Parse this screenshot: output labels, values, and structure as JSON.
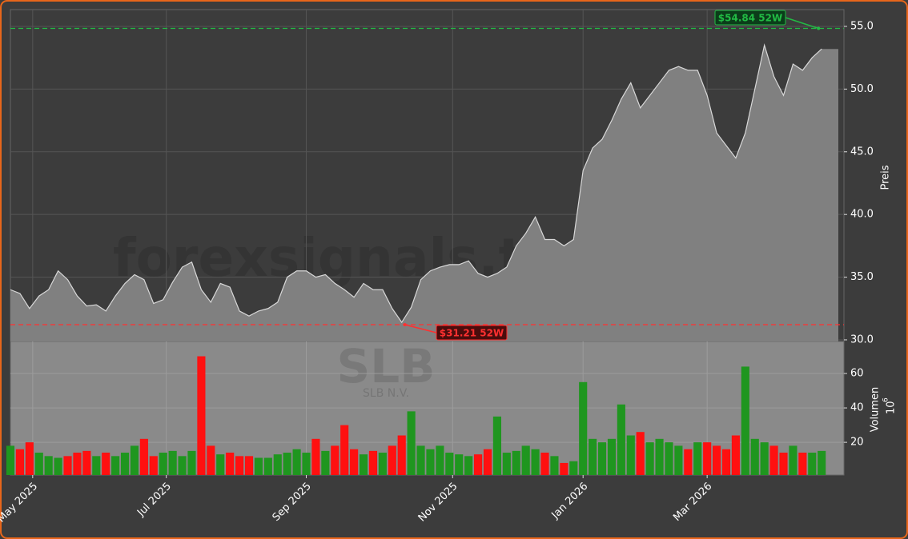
{
  "chart_data": [
    {
      "type": "area",
      "ylabel": "Preis",
      "color": "#808080",
      "line_color": "#d8d8d8",
      "grid": true,
      "watermark": "forexsignals.trade",
      "x": [
        0,
        3,
        6,
        9,
        12,
        15,
        18,
        21,
        24,
        27,
        30,
        33,
        36,
        39,
        42,
        45,
        48,
        51,
        54,
        57,
        60,
        63,
        66,
        69,
        72,
        75,
        78,
        81,
        84,
        87,
        90,
        93,
        96,
        99,
        102,
        105,
        108,
        111,
        114,
        117,
        120,
        123,
        126,
        129,
        132,
        135,
        138,
        141,
        144,
        147,
        150,
        153,
        156,
        159,
        162,
        165,
        168,
        171,
        174,
        177,
        180,
        183,
        186,
        189,
        192,
        195,
        198,
        201,
        204,
        207,
        210,
        213,
        216,
        219,
        222,
        225,
        228,
        231,
        234,
        237,
        240,
        243,
        246,
        249,
        252,
        255
      ],
      "values": [
        34.0,
        33.7,
        32.5,
        33.5,
        34.0,
        35.5,
        34.8,
        33.5,
        32.7,
        32.8,
        32.3,
        33.5,
        34.5,
        35.2,
        34.8,
        32.9,
        33.2,
        34.6,
        35.8,
        36.2,
        34.0,
        33.0,
        34.5,
        34.2,
        32.3,
        31.9,
        32.3,
        32.5,
        33.0,
        35.0,
        35.5,
        35.5,
        35.0,
        35.2,
        34.5,
        34.0,
        33.4,
        34.5,
        34.0,
        34.0,
        32.5,
        31.4,
        32.6,
        34.8,
        35.5,
        35.8,
        36.0,
        36.0,
        36.3,
        35.3,
        35.0,
        35.3,
        35.8,
        37.5,
        38.5,
        39.8,
        38.0,
        38.0,
        37.5,
        38.0,
        43.5,
        45.3,
        46.0,
        47.5,
        49.2,
        50.5,
        48.5,
        49.5,
        50.5,
        51.5,
        51.8,
        51.5,
        51.5,
        49.5,
        46.5,
        45.5,
        44.5,
        46.5,
        50.0,
        53.5,
        51.0,
        49.5,
        52.0,
        51.5,
        52.5,
        53.2
      ],
      "xlim": [
        0,
        262
      ],
      "ylim": [
        29.87,
        56.34
      ],
      "yticks": [
        {
          "value": 30,
          "label": "30.0"
        },
        {
          "value": 35,
          "label": "35.0"
        },
        {
          "value": 40,
          "label": "40.0"
        },
        {
          "value": 45,
          "label": "45.0"
        },
        {
          "value": 50,
          "label": "50.0"
        },
        {
          "value": 55,
          "label": "55.0"
        }
      ],
      "annotations": [
        {
          "x": 254,
          "value": 54.84,
          "label": "$54.84 52W",
          "color": "#22bb44"
        },
        {
          "x": 124,
          "value": 31.21,
          "label": "$31.21 52W",
          "color": "#ff3030"
        }
      ]
    },
    {
      "type": "bar",
      "ylabel": "Volumen",
      "unit_base": "10",
      "unit_exponent": "6",
      "up_color": "#1f961f",
      "down_color": "#ff1010",
      "grid": true,
      "watermark": "SLB",
      "watermark_sub": "SLB N.V.",
      "values": [
        18,
        16,
        20,
        14,
        12,
        11,
        12,
        14,
        15,
        12,
        14,
        12,
        14,
        18,
        22,
        12,
        14,
        15,
        12,
        15,
        70,
        18,
        13,
        14,
        12,
        12,
        11,
        11,
        13,
        14,
        16,
        14,
        22,
        15,
        18,
        30,
        16,
        13,
        15,
        14,
        18,
        24,
        38,
        18,
        16,
        18,
        14,
        13,
        12,
        13,
        16,
        35,
        14,
        15,
        18,
        16,
        14,
        12,
        8,
        9,
        55,
        22,
        20,
        22,
        42,
        24,
        26,
        20,
        22,
        20,
        18,
        16,
        20,
        20,
        18,
        16,
        24,
        64,
        22,
        20,
        18,
        14,
        18,
        14,
        14,
        15
      ],
      "ylim": [
        1,
        78.6
      ],
      "yticks": [
        20,
        40,
        60
      ],
      "xlim": [
        0,
        262
      ],
      "xticks": [
        {
          "value": 7,
          "label": "May 2025"
        },
        {
          "value": 49,
          "label": "Jul 2025"
        },
        {
          "value": 93,
          "label": "Sep 2025"
        },
        {
          "value": 139,
          "label": "Nov 2025"
        },
        {
          "value": 180,
          "label": "Jan 2026"
        },
        {
          "value": 219,
          "label": "Mar 2026"
        }
      ]
    }
  ]
}
